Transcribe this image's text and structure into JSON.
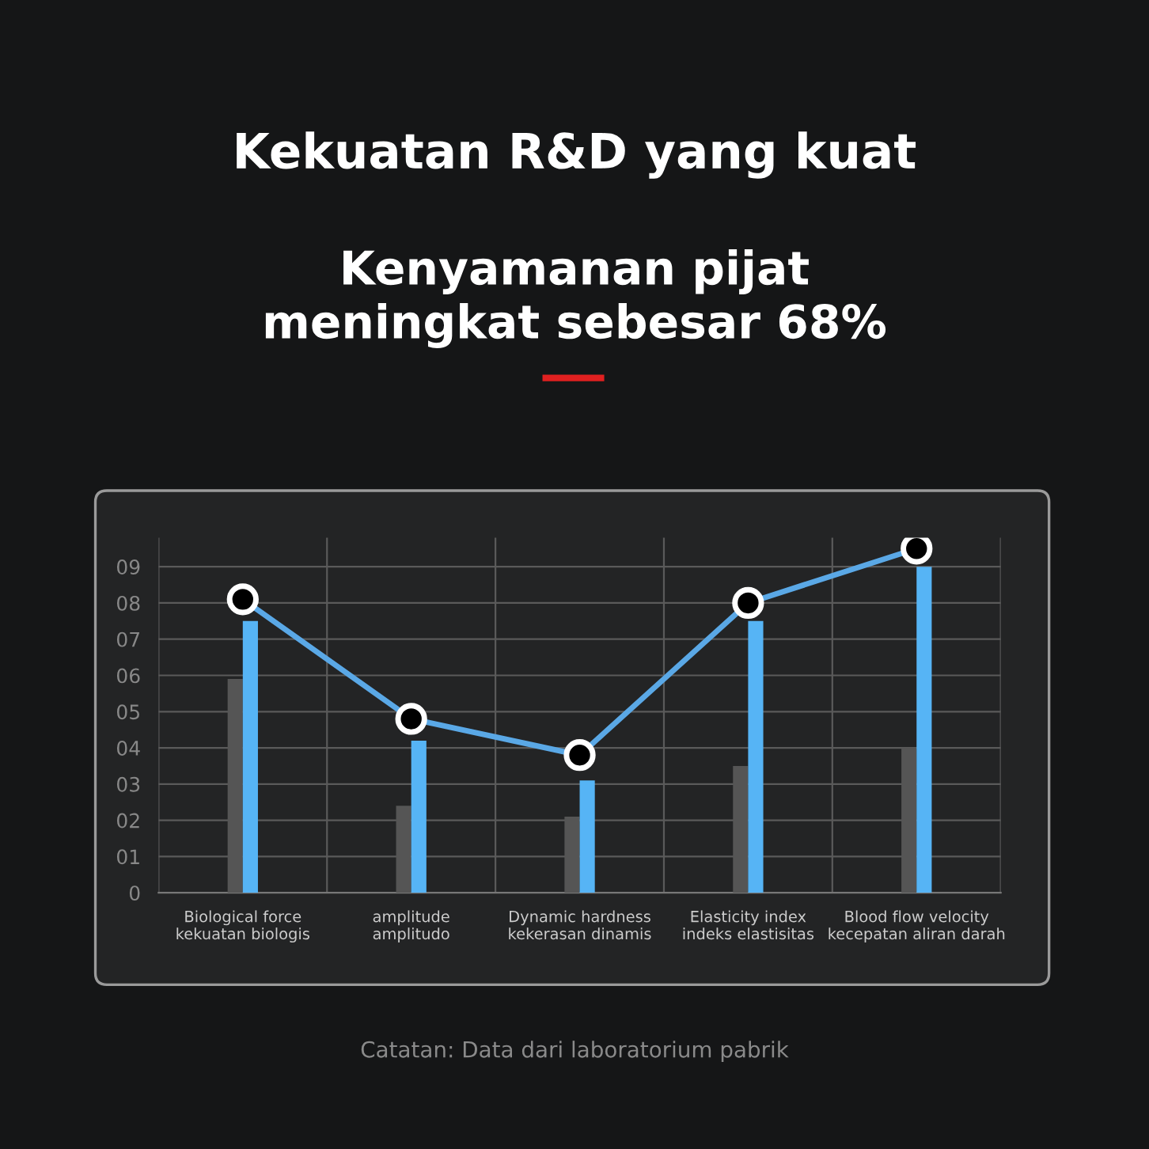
{
  "chart_data": {
    "type": "bar",
    "title": "Kekuatan R&D yang kuat",
    "subtitle": "Kenyamanan pijat\nmeningkat sebesar 68%",
    "categories": [
      "Biological force\nkekuatan biologis",
      "amplitude\namplitudo",
      "Dynamic hardness\nkekerasan dinamis",
      "Elasticity index\nindeks elastisitas",
      "Blood flow velocity\nkecepatan aliran darah"
    ],
    "series": [
      {
        "color": "#555555",
        "values": [
          5.9,
          2.4,
          2.1,
          3.5,
          4.0
        ]
      },
      {
        "color": "#56b4f5",
        "values": [
          7.5,
          4.2,
          3.1,
          7.5,
          9.0
        ]
      },
      {
        "type": "line",
        "color": "#5aa8e6",
        "values": [
          8.1,
          4.8,
          3.8,
          8.0,
          9.5
        ],
        "marker": "circle"
      }
    ],
    "ylim": [
      0,
      9.8
    ],
    "yticks": [
      0,
      {
        "value": 1,
        "label": "01"
      },
      {
        "value": 2,
        "label": "02"
      },
      {
        "value": 3,
        "label": "03"
      },
      {
        "value": 4,
        "label": "04"
      },
      {
        "value": 5,
        "label": "05"
      },
      {
        "value": 6,
        "label": "06"
      },
      {
        "value": 7,
        "label": "07"
      },
      {
        "value": 8,
        "label": "08"
      },
      {
        "value": 9,
        "label": "09"
      }
    ],
    "grid": true,
    "annotations": [
      "Catatan: Data dari laboratorium pabrik"
    ]
  }
}
